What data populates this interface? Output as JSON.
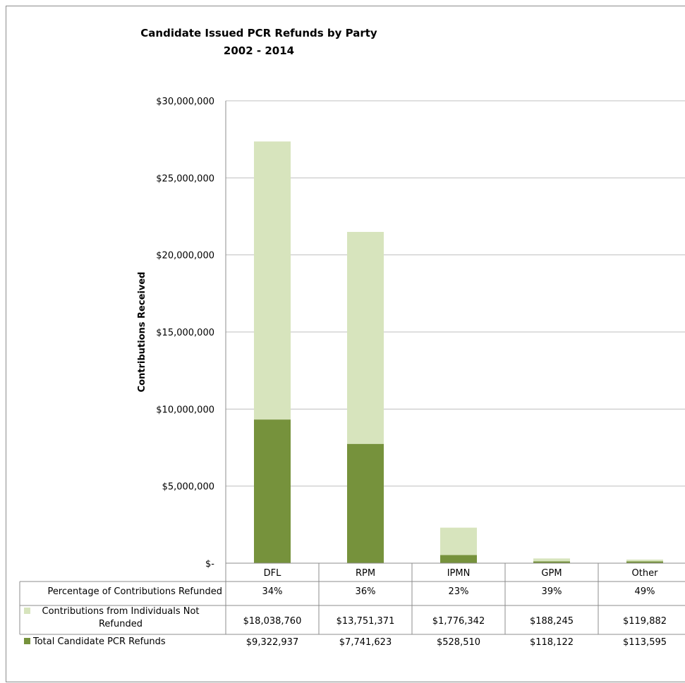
{
  "chart_data": {
    "type": "bar",
    "stacked": true,
    "title": "Candidate Issued PCR Refunds by Party",
    "subtitle": "2002 - 2014",
    "ylabel": "Contributions Received",
    "xlabel": "",
    "ylim": [
      0,
      30000000
    ],
    "y_tick_values": [
      0,
      5000000,
      10000000,
      15000000,
      20000000,
      25000000,
      30000000
    ],
    "y_tick_labels": [
      "$-",
      "$5,000,000",
      "$10,000,000",
      "$15,000,000",
      "$20,000,000",
      "$25,000,000",
      "$30,000,000"
    ],
    "grid": true,
    "legend": "in data table",
    "categories": [
      "DFL",
      "RPM",
      "IPMN",
      "GPM",
      "Other"
    ],
    "series": [
      {
        "name": "Total Candidate PCR Refunds",
        "color": "#76923c",
        "values": [
          9322937,
          7741623,
          528510,
          118122,
          113595
        ],
        "labels": [
          "$9,322,937",
          "$7,741,623",
          "$528,510",
          "$118,122",
          "$113,595"
        ]
      },
      {
        "name": "Contributions from Individuals  Not Refunded",
        "name_lines": [
          "Contributions from Individuals  Not",
          "Refunded"
        ],
        "color": "#d7e4bd",
        "values": [
          18038760,
          13751371,
          1776342,
          188245,
          119882
        ],
        "labels": [
          "$18,038,760",
          "$13,751,371",
          "$1,776,342",
          "$188,245",
          "$119,882"
        ]
      }
    ],
    "table_rows": [
      {
        "header": "Percentage of Contributions Refunded",
        "values": [
          "34%",
          "36%",
          "23%",
          "39%",
          "49%"
        ]
      }
    ]
  }
}
